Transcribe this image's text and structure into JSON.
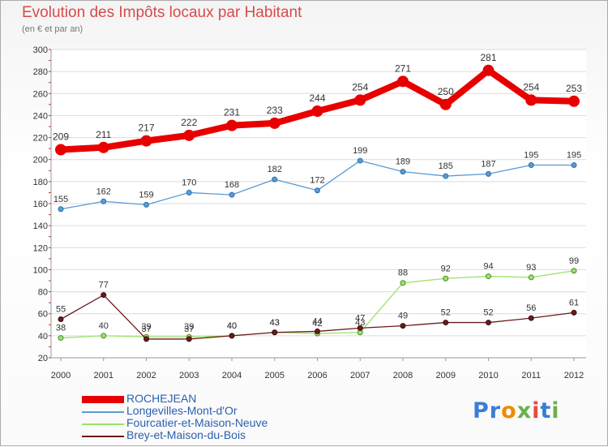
{
  "title": "Evolution des Impôts locaux par Habitant",
  "subtitle": "(en € et par an)",
  "logo": {
    "text": "Proxiti",
    "letter_colors": [
      "#3b7dd8",
      "#3b7dd8",
      "#f08a00",
      "#6ab04c",
      "#e84b3c",
      "#3b7dd8",
      "#6ab04c"
    ]
  },
  "chart_data": {
    "type": "line",
    "title": "Evolution des Impôts locaux par Habitant",
    "subtitle": "(en € et par an)",
    "x": [
      "2000",
      "2001",
      "2002",
      "2003",
      "2004",
      "2005",
      "2006",
      "2007",
      "2008",
      "2009",
      "2010",
      "2011",
      "2012"
    ],
    "ylim": [
      20,
      300
    ],
    "yticks": [
      20,
      40,
      60,
      80,
      100,
      120,
      140,
      160,
      180,
      200,
      220,
      240,
      260,
      280,
      300
    ],
    "grid": "horizontal",
    "legend_position": "bottom-left",
    "series": [
      {
        "name": "ROCHEJEAN",
        "color": "#e80000",
        "values": [
          209,
          211,
          217,
          222,
          231,
          233,
          244,
          254,
          271,
          250,
          281,
          254,
          253
        ]
      },
      {
        "name": "Longevilles-Mont-d'Or",
        "color": "#5b9bd5",
        "values": [
          155,
          162,
          159,
          170,
          168,
          182,
          172,
          199,
          189,
          185,
          187,
          195,
          195
        ]
      },
      {
        "name": "Fourcatier-et-Maison-Neuve",
        "color": "#9be36a",
        "values": [
          38,
          40,
          39,
          39,
          40,
          43,
          42,
          43,
          88,
          92,
          94,
          93,
          99
        ]
      },
      {
        "name": "Brey-et-Maison-du-Bois",
        "color": "#6b1a1a",
        "values": [
          55,
          77,
          37,
          37,
          40,
          43,
          44,
          47,
          49,
          52,
          52,
          56,
          61
        ]
      }
    ]
  }
}
